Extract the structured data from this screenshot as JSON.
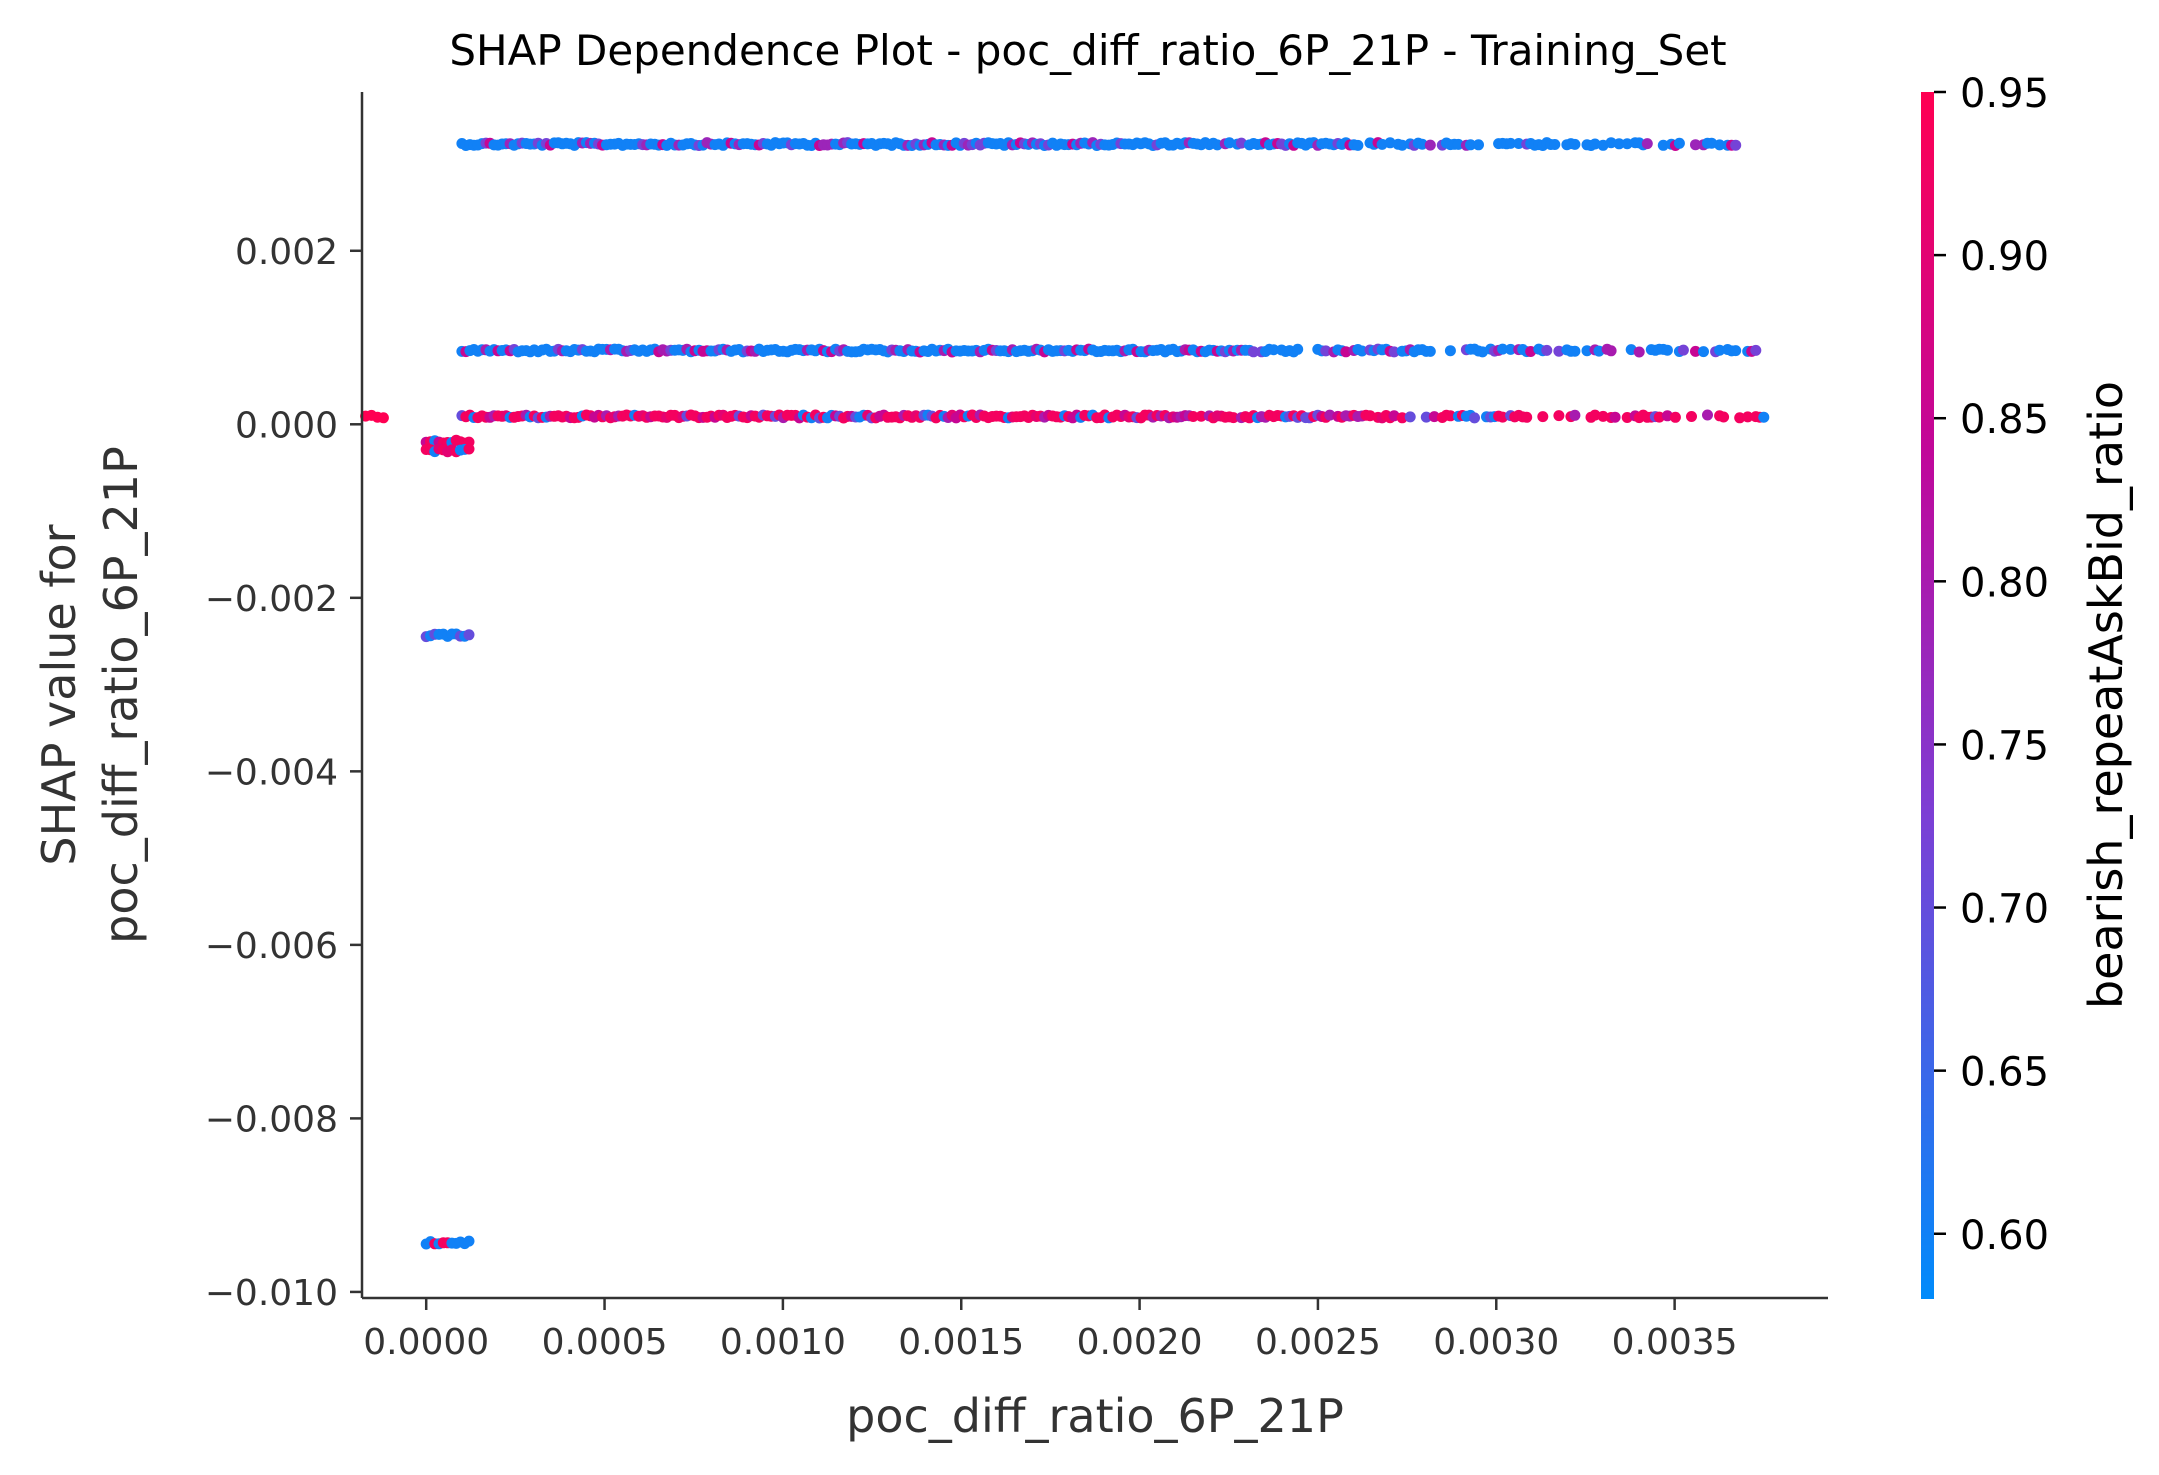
{
  "chart_data": {
    "type": "scatter",
    "title": "SHAP Dependence Plot - poc_diff_ratio_6P_21P - Training_Set",
    "xlabel": "poc_diff_ratio_6P_21P",
    "ylabel_lines": [
      "SHAP value for",
      "poc_diff_ratio_6P_21P"
    ],
    "xlim": [
      -0.00018,
      0.00393
    ],
    "ylim": [
      -0.01007,
      0.00383
    ],
    "x_ticks": [
      0.0,
      0.0005,
      0.001,
      0.0015,
      0.002,
      0.0025,
      0.003,
      0.0035
    ],
    "x_tick_labels": [
      "0.0000",
      "0.0005",
      "0.0010",
      "0.0015",
      "0.0020",
      "0.0025",
      "0.0030",
      "0.0035"
    ],
    "y_ticks": [
      0.002,
      0.0,
      -0.002,
      -0.004,
      -0.006,
      -0.008,
      -0.01
    ],
    "y_tick_labels": [
      "0.002",
      "0.000",
      "−0.002",
      "−0.004",
      "−0.006",
      "−0.008",
      "−0.010"
    ],
    "grid": false,
    "colorbar": {
      "label": "bearish_repeatAskBid_ratio",
      "range": [
        0.58,
        0.95
      ],
      "ticks": [
        0.6,
        0.65,
        0.7,
        0.75,
        0.8,
        0.85,
        0.9,
        0.95
      ],
      "tick_labels": [
        "0.60",
        "0.65",
        "0.70",
        "0.75",
        "0.80",
        "0.85",
        "0.90",
        "0.95"
      ],
      "colors": [
        "#008bfb",
        "#7c3fd5",
        "#c0079a",
        "#ff0052"
      ]
    },
    "clusters": [
      {
        "y": 0.00323,
        "x_range": [
          0.0001,
          0.00375
        ],
        "color_values": [
          0.6,
          0.6,
          0.6,
          0.78,
          0.6,
          0.6,
          0.85,
          0.6,
          0.6,
          0.72,
          0.6,
          0.6
        ]
      },
      {
        "y": 0.00085,
        "x_range": [
          0.0001,
          0.00375
        ],
        "color_values": [
          0.6,
          0.6,
          0.85,
          0.6,
          0.8,
          0.6,
          0.6,
          0.6,
          0.72,
          0.6
        ]
      },
      {
        "y": 9e-05,
        "x_range": [
          0.0001,
          0.00375
        ],
        "color_values": [
          0.93,
          0.93,
          0.9,
          0.85,
          0.93,
          0.8,
          0.93,
          0.6,
          0.93,
          0.7,
          0.93
        ]
      },
      {
        "y": -0.0002,
        "x_range": [
          0.0,
          0.00012
        ],
        "color_values": [
          0.93,
          0.85,
          0.93,
          0.6
        ]
      },
      {
        "y": -0.0003,
        "x_range": [
          0.0,
          0.00012
        ],
        "color_values": [
          0.93,
          0.9,
          0.6
        ]
      },
      {
        "y": -0.00243,
        "x_range": [
          0.0,
          0.00012
        ],
        "color_values": [
          0.6,
          0.6,
          0.7,
          0.6
        ]
      },
      {
        "y": -0.00943,
        "x_range": [
          0.0,
          0.00012
        ],
        "color_values": [
          0.6,
          0.93,
          0.6,
          0.6
        ]
      },
      {
        "y": 9e-05,
        "x_range": [
          -0.00017,
          -0.00012
        ],
        "color_values": [
          0.95
        ]
      }
    ]
  }
}
